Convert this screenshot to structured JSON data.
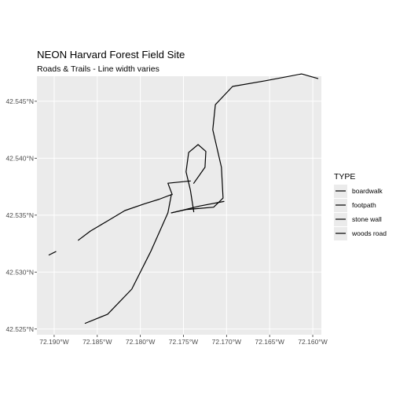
{
  "title": "NEON Harvard Forest Field Site",
  "subtitle": "Roads & Trails - Line width varies",
  "colors": {
    "panel_background": "#ebebeb",
    "grid_line": "#ffffff",
    "line": "#000000",
    "tick_text": "#4d4d4d"
  },
  "axes": {
    "x_ticks": [
      "72.190°W",
      "72.185°W",
      "72.180°W",
      "72.175°W",
      "72.170°W",
      "72.165°W",
      "72.160°W"
    ],
    "y_ticks": [
      "42.525°N",
      "42.530°N",
      "42.535°N",
      "42.540°N",
      "42.545°N"
    ]
  },
  "legend": {
    "title": "TYPE",
    "entries": [
      "boardwalk",
      "footpath",
      "stone wall",
      "woods road"
    ]
  },
  "chart_data": {
    "type": "map",
    "title": "NEON Harvard Forest Field Site",
    "subtitle": "Roads & Trails - Line width varies",
    "x_ticks": [
      -72.19,
      -72.185,
      -72.18,
      -72.175,
      -72.17,
      -72.165,
      -72.16
    ],
    "y_ticks": [
      42.525,
      42.53,
      42.535,
      42.54,
      42.545
    ],
    "xlim": [
      -72.192,
      -72.159
    ],
    "ylim": [
      42.5245,
      42.5472
    ],
    "grid": true,
    "legend_position": "right",
    "features": [
      {
        "type": "woods road",
        "coords": [
          [
            -72.1864,
            42.5255
          ],
          [
            -72.1838,
            42.5263
          ],
          [
            -72.181,
            42.5285
          ],
          [
            -72.1788,
            42.5318
          ],
          [
            -72.1768,
            42.5352
          ],
          [
            -72.1764,
            42.5368
          ],
          [
            -72.1778,
            42.5364
          ],
          [
            -72.1795,
            42.536
          ],
          [
            -72.1818,
            42.5354
          ],
          [
            -72.1838,
            42.5345
          ],
          [
            -72.1858,
            42.5336
          ],
          [
            -72.1872,
            42.5328
          ]
        ]
      },
      {
        "type": "woods road",
        "coords": [
          [
            -72.1764,
            42.5352
          ],
          [
            -72.1746,
            42.5355
          ],
          [
            -72.1715,
            42.5357
          ],
          [
            -72.1704,
            42.5365
          ],
          [
            -72.1706,
            42.5392
          ],
          [
            -72.1716,
            42.5425
          ],
          [
            -72.1713,
            42.5447
          ],
          [
            -72.1693,
            42.5463
          ],
          [
            -72.1655,
            42.5468
          ],
          [
            -72.1613,
            42.5474
          ],
          [
            -72.1594,
            42.547
          ]
        ]
      },
      {
        "type": "footpath",
        "coords": [
          [
            -72.1738,
            42.5353
          ],
          [
            -72.1742,
            42.5372
          ],
          [
            -72.1747,
            42.5388
          ],
          [
            -72.1744,
            42.5405
          ],
          [
            -72.1733,
            42.5412
          ],
          [
            -72.1724,
            42.5406
          ],
          [
            -72.1725,
            42.5392
          ],
          [
            -72.1738,
            42.5378
          ]
        ]
      },
      {
        "type": "footpath",
        "coords": [
          [
            -72.1763,
            42.5368
          ],
          [
            -72.1768,
            42.5378
          ],
          [
            -72.1742,
            42.538
          ]
        ]
      },
      {
        "type": "stone wall",
        "coords": [
          [
            -72.1764,
            42.5352
          ],
          [
            -72.1731,
            42.5358
          ],
          [
            -72.1703,
            42.5362
          ]
        ]
      },
      {
        "type": "boardwalk",
        "coords": [
          [
            -72.1906,
            42.5315
          ],
          [
            -72.1898,
            42.5318
          ]
        ]
      }
    ]
  }
}
